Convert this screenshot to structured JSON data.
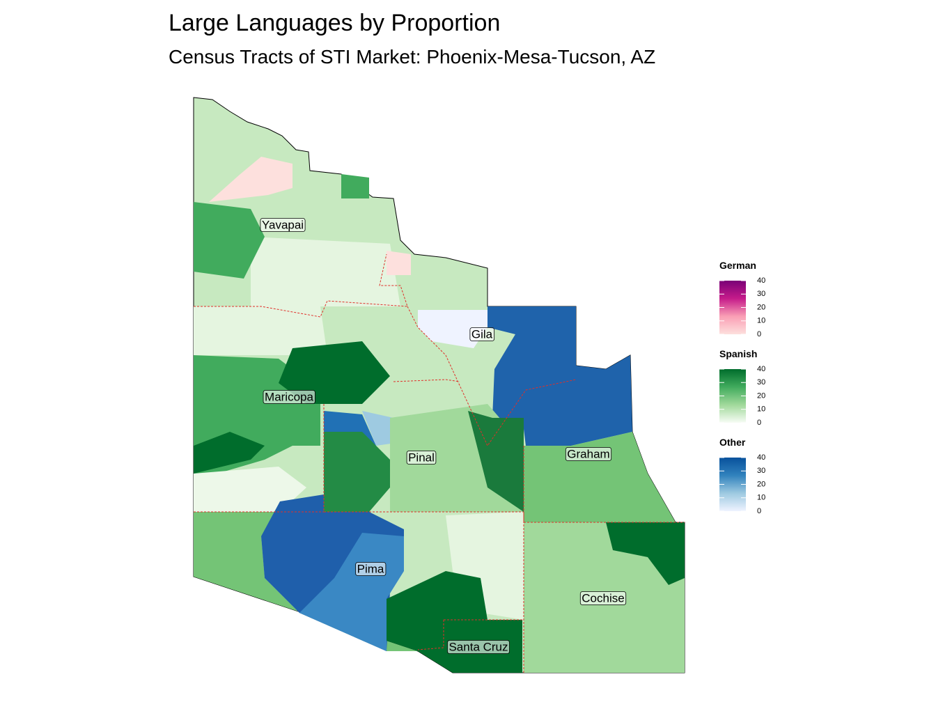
{
  "header": {
    "title": "Large Languages by Proportion",
    "subtitle": "Census Tracts of STI Market: Phoenix-Mesa-Tucson, AZ"
  },
  "map": {
    "labels": [
      "Yavapai",
      "Gila",
      "Maricopa",
      "Pinal",
      "Graham",
      "Pima",
      "Cochise",
      "Santa Cruz"
    ]
  },
  "legends": [
    {
      "title": "German",
      "colors": [
        "#fde0dd",
        "#fa9fb5",
        "#c51b8a",
        "#7a0177"
      ],
      "lim": [
        0,
        40
      ],
      "ticks": [
        0,
        10,
        20,
        30,
        40
      ]
    },
    {
      "title": "Spanish",
      "colors": [
        "#f7fcf5",
        "#a1d99b",
        "#41ab5d",
        "#006d2c"
      ],
      "lim": [
        0,
        40
      ],
      "ticks": [
        0,
        10,
        20,
        30,
        40
      ]
    },
    {
      "title": "Other",
      "colors": [
        "#eff3ff",
        "#9ecae1",
        "#3182bd",
        "#08519c"
      ],
      "lim": [
        0,
        40
      ],
      "ticks": [
        0,
        10,
        20,
        30,
        40
      ]
    }
  ]
}
